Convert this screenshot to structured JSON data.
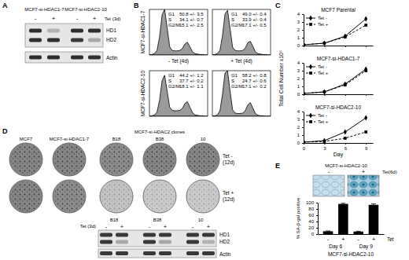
{
  "panels": {
    "A": {
      "label": "A",
      "headers": [
        "MCF7-si-HDAC1-7",
        "MCF7-si-HDAC2-10"
      ],
      "treatment": "Tet (3d)",
      "lanes": [
        "-",
        "+",
        "-",
        "+"
      ],
      "bands": [
        "HD1",
        "HD2",
        "Actin"
      ],
      "intensities": [
        [
          0.9,
          0.25,
          0.9,
          0.9
        ],
        [
          0.9,
          0.9,
          0.85,
          0.3
        ],
        [
          0.9,
          0.9,
          0.9,
          0.9
        ]
      ]
    },
    "B": {
      "label": "B",
      "rows": [
        "MCF7-si-HDAC1-7",
        "MCF7-si-HDAC2-10"
      ],
      "columns": [
        "- Tet (4d)",
        "+ Tet (4d)"
      ]
    },
    "C": {
      "label": "C"
    },
    "D": {
      "label": "D",
      "columns": [
        "MCF7",
        "MCF7-si-HDAC1-7"
      ],
      "group": "MCF7-si-HDAC2 clones",
      "clones": [
        "B18",
        "B38",
        "10"
      ],
      "rows": [
        "Tet -",
        "Tet +"
      ],
      "row_note": "(12d)",
      "densities": [
        [
          0.8,
          0.8,
          0.75,
          0.8,
          0.8
        ],
        [
          0.8,
          0.75,
          0.35,
          0.3,
          0.3
        ]
      ],
      "blot": {
        "treatment": "Tet (3d)",
        "lanes": [
          "-",
          "+",
          "-",
          "+",
          "-",
          "+"
        ],
        "bands": [
          "HD1",
          "HD2",
          "Actin"
        ],
        "intensities": [
          [
            0.85,
            0.85,
            0.85,
            0.85,
            0.85,
            0.85
          ],
          [
            0.85,
            0.3,
            0.85,
            0.3,
            0.85,
            0.25
          ],
          [
            0.85,
            0.85,
            0.85,
            0.85,
            0.85,
            0.85
          ]
        ]
      }
    },
    "E": {
      "label": "E",
      "image_title": "MCF7-si-HDAC2-10",
      "treatment": "Tet(6d)",
      "lanes": [
        "-",
        "+"
      ]
    }
  },
  "chart_data": [
    {
      "type": "area",
      "x": [
        0,
        1,
        2,
        3,
        4,
        5,
        6,
        7,
        8,
        9,
        10,
        11,
        12,
        13,
        14,
        15,
        16,
        17,
        18,
        19,
        20,
        21,
        22,
        23
      ],
      "values": [
        0,
        1,
        3,
        10,
        40,
        88,
        100,
        60,
        18,
        10,
        9,
        9,
        10,
        14,
        24,
        28,
        18,
        7,
        3,
        2,
        1,
        1,
        0,
        0
      ],
      "xlim": [
        0,
        23
      ],
      "ylim": [
        0,
        100
      ],
      "tick_labels": false,
      "color": "#9a9a9a",
      "phases": [
        {
          "name": "G1",
          "label": "50.8 +/- 3.5"
        },
        {
          "name": "S",
          "label": "34.1 +/- 0.7"
        },
        {
          "name": "G2/M",
          "label": "15.1 +/- 2.5"
        }
      ]
    },
    {
      "type": "area",
      "x": [
        0,
        1,
        2,
        3,
        4,
        5,
        6,
        7,
        8,
        9,
        10,
        11,
        12,
        13,
        14,
        15,
        16,
        17,
        18,
        19,
        20,
        21,
        22,
        23
      ],
      "values": [
        0,
        1,
        3,
        10,
        42,
        90,
        98,
        58,
        17,
        10,
        9,
        9,
        10,
        15,
        27,
        30,
        19,
        7,
        3,
        2,
        1,
        1,
        0,
        0
      ],
      "xlim": [
        0,
        23
      ],
      "ylim": [
        0,
        100
      ],
      "tick_labels": false,
      "color": "#9a9a9a",
      "phases": [
        {
          "name": "G1",
          "label": "49.0 +/- 0.4"
        },
        {
          "name": "S",
          "label": "33.9 +/- 0.4"
        },
        {
          "name": "G2/M",
          "label": "17.1 +/- 0.5"
        }
      ]
    },
    {
      "type": "area",
      "x": [
        0,
        1,
        2,
        3,
        4,
        5,
        6,
        7,
        8,
        9,
        10,
        11,
        12,
        13,
        14,
        15,
        16,
        17,
        18,
        19,
        20,
        21,
        22,
        23
      ],
      "values": [
        0,
        1,
        3,
        9,
        35,
        78,
        90,
        55,
        20,
        13,
        12,
        12,
        13,
        17,
        28,
        32,
        20,
        8,
        3,
        2,
        1,
        1,
        0,
        0
      ],
      "xlim": [
        0,
        23
      ],
      "ylim": [
        0,
        100
      ],
      "tick_labels": false,
      "color": "#9a9a9a",
      "phases": [
        {
          "name": "G1",
          "label": "44.2 +/- 1.2"
        },
        {
          "name": "S",
          "label": "37.7 +/- 0.2"
        },
        {
          "name": "G2/M",
          "label": "18.1 +/- 1.1"
        }
      ]
    },
    {
      "type": "area",
      "x": [
        0,
        1,
        2,
        3,
        4,
        5,
        6,
        7,
        8,
        9,
        10,
        11,
        12,
        13,
        14,
        15,
        16,
        17,
        18,
        19,
        20,
        21,
        22,
        23
      ],
      "values": [
        0,
        1,
        3,
        12,
        48,
        95,
        100,
        55,
        14,
        7,
        6,
        6,
        7,
        12,
        25,
        30,
        18,
        6,
        2,
        1,
        1,
        0,
        0,
        0
      ],
      "xlim": [
        0,
        23
      ],
      "ylim": [
        0,
        100
      ],
      "tick_labels": false,
      "color": "#9a9a9a",
      "phases": [
        {
          "name": "G1",
          "label": "58.2 +/- 0.8"
        },
        {
          "name": "S",
          "label": "24.7 +/- 0.6"
        },
        {
          "name": "G2/M",
          "label": "17.1 +/- 0.2"
        }
      ]
    },
    {
      "type": "line",
      "title": "MCF7 Parental",
      "x": [
        0,
        3,
        6,
        9
      ],
      "xlim": [
        0,
        10
      ],
      "xticks": [
        0,
        3,
        6,
        9
      ],
      "ylim": [
        0,
        4
      ],
      "yticks": [
        0,
        1,
        2,
        3,
        4
      ],
      "tick_labels": "y",
      "legend": "upper left",
      "series": [
        {
          "name": "Tet -",
          "color": "#000000",
          "marker": "diamond",
          "line_style": "solid",
          "values": [
            0.1,
            0.3,
            1.2,
            3.4
          ]
        },
        {
          "name": "Tet +",
          "color": "#000000",
          "marker": "square",
          "line_style": "dashed",
          "values": [
            0.1,
            0.3,
            1.1,
            2.6
          ]
        }
      ]
    },
    {
      "type": "line",
      "title": "MCF7-si-HDAC1-7",
      "ylabel": "Total Cell Number x10⁶",
      "x": [
        0,
        3,
        6,
        9
      ],
      "xlim": [
        0,
        10
      ],
      "xticks": [
        0,
        3,
        6,
        9
      ],
      "ylim": [
        0,
        4
      ],
      "yticks": [
        0,
        1,
        2,
        3,
        4
      ],
      "tick_labels": "y",
      "legend": "upper left",
      "series": [
        {
          "name": "Tet -",
          "color": "#000000",
          "marker": "diamond",
          "line_style": "solid",
          "values": [
            0.1,
            0.3,
            1.3,
            3.2
          ]
        },
        {
          "name": "Tet +",
          "color": "#000000",
          "marker": "square",
          "line_style": "dashed",
          "values": [
            0.1,
            0.3,
            1.2,
            3.0
          ]
        }
      ]
    },
    {
      "type": "line",
      "title": "MCF7-si-HDAC2-10",
      "xlabel": "Day",
      "x": [
        0,
        3,
        6,
        9
      ],
      "xlim": [
        0,
        10
      ],
      "xticks": [
        0,
        3,
        6,
        9
      ],
      "ylim": [
        0,
        4
      ],
      "yticks": [
        0,
        1,
        2,
        3,
        4
      ],
      "legend": "upper left",
      "series": [
        {
          "name": "Tet -",
          "color": "#000000",
          "marker": "diamond",
          "line_style": "solid",
          "values": [
            0.1,
            0.3,
            1.4,
            3.2
          ]
        },
        {
          "name": "Tet +",
          "color": "#000000",
          "marker": "square",
          "line_style": "dashed",
          "values": [
            0.1,
            0.2,
            0.6,
            1.4
          ]
        }
      ]
    },
    {
      "type": "bar",
      "categories": [
        "-",
        "+",
        "-",
        "+"
      ],
      "values": [
        9,
        96,
        8,
        93
      ],
      "errors": [
        1,
        2,
        1,
        3
      ],
      "color": "#000000",
      "ylim": [
        0,
        100
      ],
      "yticks": [
        0,
        20,
        40,
        60,
        80,
        100
      ],
      "ylabel": "% SA-β-gal positive",
      "xlabel": "MCF7-si-HDAC2-10",
      "group_labels": [
        "Day 6",
        "Day 9"
      ],
      "annotations": [
        "Tet"
      ]
    }
  ]
}
